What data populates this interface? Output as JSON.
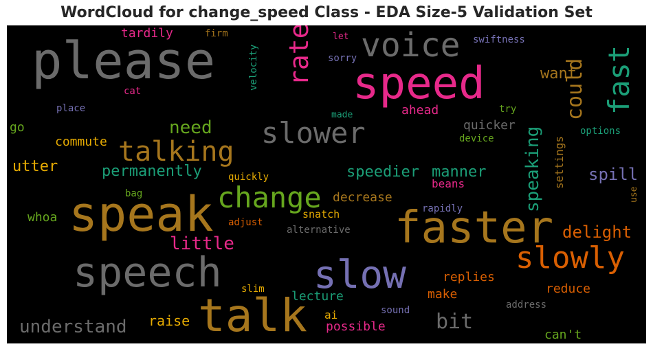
{
  "title": "WordCloud for change_speed Class - EDA Size-5 Validation Set",
  "colors": {
    "gray": "#6b6b6b",
    "pink": "#e7298a",
    "gold": "#a6761d",
    "green": "#1b9e77",
    "lime": "#66a61e",
    "orange": "#d95f02",
    "purple": "#7570b3",
    "yellow": "#e6ab02"
  },
  "words": [
    {
      "text": "please",
      "color": "gray"
    },
    {
      "text": "voice",
      "color": "gray"
    },
    {
      "text": "speed",
      "color": "pink"
    },
    {
      "text": "fast",
      "color": "green"
    },
    {
      "text": "rate",
      "color": "pink"
    },
    {
      "text": "could",
      "color": "gold"
    },
    {
      "text": "want",
      "color": "gold"
    },
    {
      "text": "tardily",
      "color": "pink"
    },
    {
      "text": "firm",
      "color": "gold"
    },
    {
      "text": "let",
      "color": "pink"
    },
    {
      "text": "swiftness",
      "color": "purple"
    },
    {
      "text": "sorry",
      "color": "purple"
    },
    {
      "text": "velocity",
      "color": "green"
    },
    {
      "text": "cat",
      "color": "pink"
    },
    {
      "text": "place",
      "color": "purple"
    },
    {
      "text": "made",
      "color": "green"
    },
    {
      "text": "ahead",
      "color": "pink"
    },
    {
      "text": "try",
      "color": "lime"
    },
    {
      "text": "need",
      "color": "lime"
    },
    {
      "text": "slower",
      "color": "gray"
    },
    {
      "text": "quicker",
      "color": "gray"
    },
    {
      "text": "speaking",
      "color": "green"
    },
    {
      "text": "settings",
      "color": "gold"
    },
    {
      "text": "options",
      "color": "green"
    },
    {
      "text": "go",
      "color": "lime"
    },
    {
      "text": "commute",
      "color": "yellow"
    },
    {
      "text": "talking",
      "color": "gold"
    },
    {
      "text": "device",
      "color": "lime"
    },
    {
      "text": "utter",
      "color": "yellow"
    },
    {
      "text": "permanently",
      "color": "green"
    },
    {
      "text": "speedier",
      "color": "green"
    },
    {
      "text": "manner",
      "color": "green"
    },
    {
      "text": "spill",
      "color": "purple"
    },
    {
      "text": "quickly",
      "color": "yellow"
    },
    {
      "text": "beans",
      "color": "pink"
    },
    {
      "text": "change",
      "color": "lime"
    },
    {
      "text": "bag",
      "color": "lime"
    },
    {
      "text": "decrease",
      "color": "gold"
    },
    {
      "text": "use",
      "color": "gold"
    },
    {
      "text": "speak",
      "color": "gold"
    },
    {
      "text": "whoa",
      "color": "lime"
    },
    {
      "text": "snatch",
      "color": "yellow"
    },
    {
      "text": "rapidly",
      "color": "purple"
    },
    {
      "text": "faster",
      "color": "gold"
    },
    {
      "text": "adjust",
      "color": "orange"
    },
    {
      "text": "alternative",
      "color": "gray"
    },
    {
      "text": "delight",
      "color": "orange"
    },
    {
      "text": "little",
      "color": "pink"
    },
    {
      "text": "slowly",
      "color": "orange"
    },
    {
      "text": "speech",
      "color": "gray"
    },
    {
      "text": "slow",
      "color": "purple"
    },
    {
      "text": "replies",
      "color": "orange"
    },
    {
      "text": "slim",
      "color": "yellow"
    },
    {
      "text": "reduce",
      "color": "orange"
    },
    {
      "text": "lecture",
      "color": "green"
    },
    {
      "text": "make",
      "color": "orange"
    },
    {
      "text": "address",
      "color": "gray"
    },
    {
      "text": "talk",
      "color": "gold"
    },
    {
      "text": "understand",
      "color": "gray"
    },
    {
      "text": "raise",
      "color": "yellow"
    },
    {
      "text": "sound",
      "color": "purple"
    },
    {
      "text": "ai",
      "color": "yellow"
    },
    {
      "text": "bit",
      "color": "gray"
    },
    {
      "text": "possible",
      "color": "pink"
    },
    {
      "text": "can't",
      "color": "lime"
    }
  ]
}
